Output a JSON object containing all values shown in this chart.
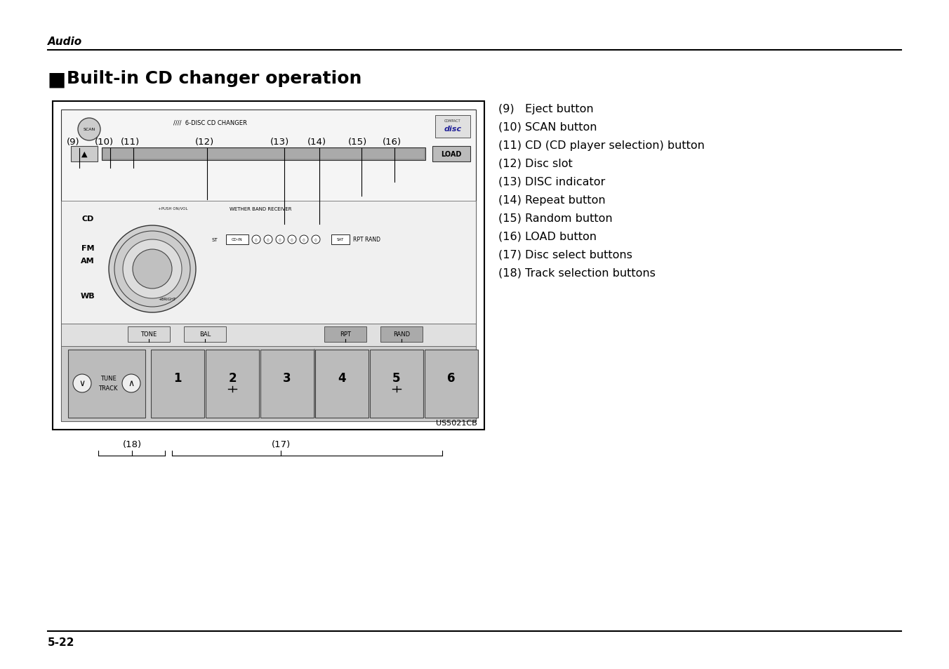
{
  "page_bg": "#ffffff",
  "header_text": "Audio",
  "title_square": "■",
  "title_text": "Built-in CD changer operation",
  "right_list": [
    "(9)   Eject button",
    "(10) SCAN button",
    "(11) CD (CD player selection) button",
    "(12) Disc slot",
    "(13) DISC indicator",
    "(14) Repeat button",
    "(15) Random button",
    "(16) LOAD button",
    "(17) Disc select buttons",
    "(18) Track selection buttons"
  ],
  "footer_text": "5-22",
  "image_code": "US5021CB",
  "line_color": "#000000",
  "gray_light": "#e8e8e8",
  "gray_mid": "#cccccc",
  "gray_dark": "#aaaaaa",
  "gray_darker": "#888888"
}
